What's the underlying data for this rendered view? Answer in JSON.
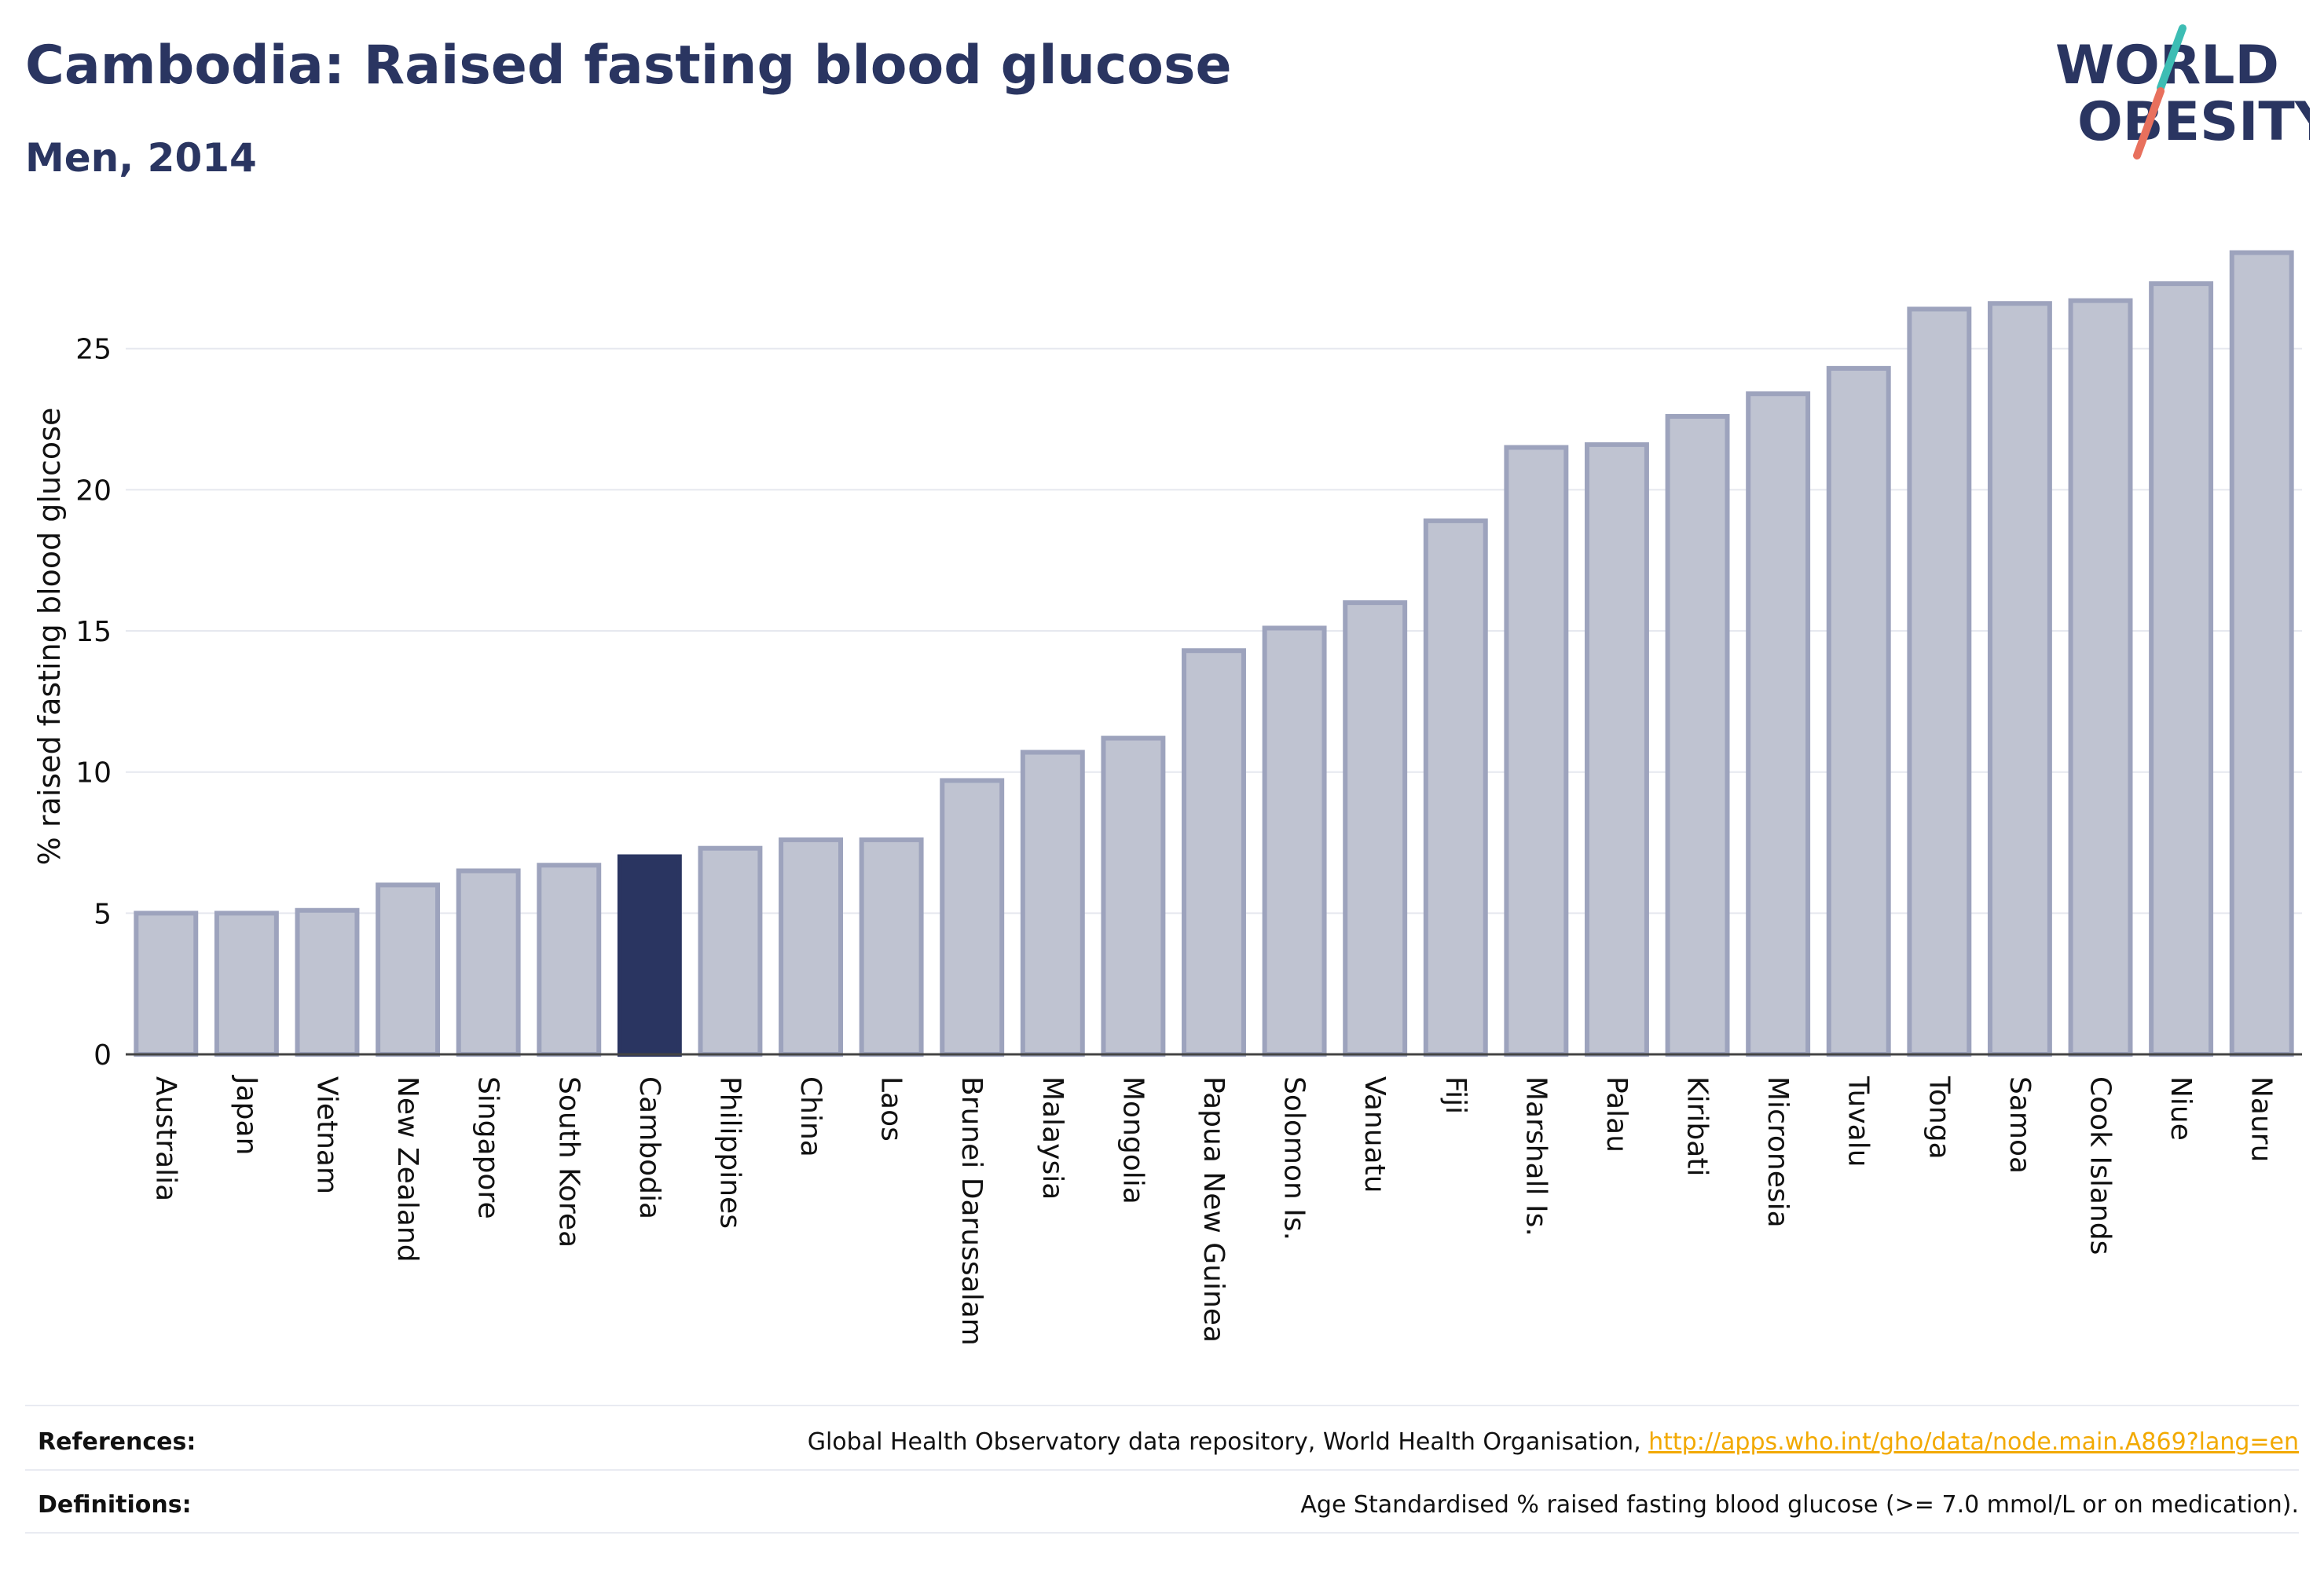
{
  "header": {
    "title": "Cambodia: Raised fasting blood glucose",
    "subtitle": "Men, 2014",
    "logo_line1": "WORLD",
    "logo_line2": "OBESITY"
  },
  "colors": {
    "bar_fill": "#bfc3d1",
    "bar_stroke": "#9da3bd",
    "highlight": "#2a3561",
    "text": "#2a3561",
    "grid": "#e6e8ef",
    "link": "#f2a900",
    "logo_teal": "#3dbdb4",
    "logo_coral": "#e8705d"
  },
  "chart_data": {
    "type": "bar",
    "title": "Cambodia: Raised fasting blood glucose",
    "subtitle": "Men, 2014",
    "ylabel": "% raised fasting blood glucose",
    "xlabel": "",
    "ylim": [
      0,
      29
    ],
    "yticks": [
      0,
      5,
      10,
      15,
      20,
      25
    ],
    "grid": true,
    "highlight": "Cambodia",
    "categories": [
      "Australia",
      "Japan",
      "Vietnam",
      "New Zealand",
      "Singapore",
      "South Korea",
      "Cambodia",
      "Philippines",
      "China",
      "Laos",
      "Brunei Darussalam",
      "Malaysia",
      "Mongolia",
      "Papua New Guinea",
      "Solomon Is.",
      "Vanuatu",
      "Fiji",
      "Marshall Is.",
      "Palau",
      "Kiribati",
      "Micronesia",
      "Tuvalu",
      "Tonga",
      "Samoa",
      "Cook Islands",
      "Niue",
      "Nauru"
    ],
    "values": [
      5.0,
      5.0,
      5.1,
      6.0,
      6.5,
      6.7,
      7.0,
      7.3,
      7.6,
      7.6,
      9.7,
      10.7,
      11.2,
      14.3,
      15.1,
      16.0,
      18.9,
      21.5,
      21.6,
      22.6,
      23.4,
      24.3,
      26.4,
      26.6,
      26.7,
      27.3,
      28.4
    ]
  },
  "footer": {
    "references_label": "References:",
    "references_text": "Global Health Observatory data repository, World Health Organisation, ",
    "references_link": "http://apps.who.int/gho/data/node.main.A869?lang=en",
    "definitions_label": "Definitions:",
    "definitions_text": "Age Standardised % raised fasting blood glucose (>= 7.0 mmol/L or on medication)."
  }
}
